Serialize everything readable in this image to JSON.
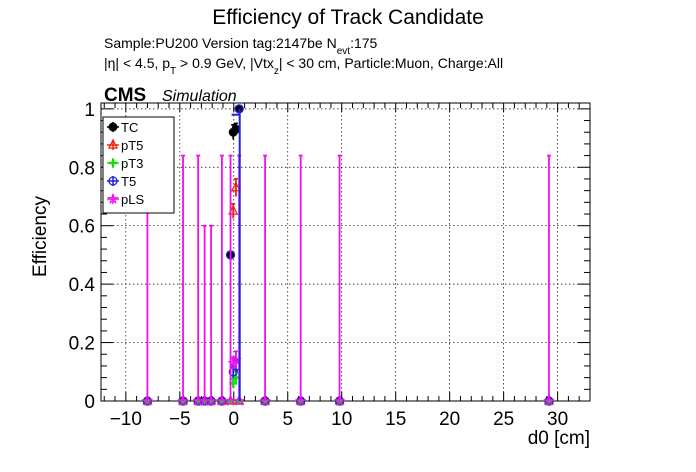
{
  "header": {
    "title": "Efficiency of Track Candidate",
    "sample_line_prefix": "Sample:PU200   Version tag:2147be  N",
    "sample_line_sub": "evt",
    "sample_line_suffix": ":175",
    "cuts_line": "|η| < 4.5, p",
    "cuts_sub_T": "T",
    "cuts_mid": " > 0.9 GeV, |Vtx",
    "cuts_sub_z": "z",
    "cuts_end": "| < 30 cm, Particle:Muon, Charge:All",
    "cms_label": "CMS",
    "simulation_label": "Simulation"
  },
  "chart_data": {
    "type": "scatter",
    "xlabel": "d0 [cm]",
    "ylabel": "Efficiency",
    "xlim": [
      -12.3,
      33.0
    ],
    "ylim": [
      0,
      1.02
    ],
    "grid": true,
    "legend_position": "top-left",
    "x_ticks": [
      -10,
      -5,
      0,
      5,
      10,
      15,
      20,
      25,
      30
    ],
    "y_ticks": [
      0,
      0.2,
      0.4,
      0.6,
      0.8,
      1
    ],
    "x_tick_labels": [
      "−10",
      "−5",
      "0",
      "5",
      "10",
      "15",
      "20",
      "25",
      "30"
    ],
    "y_tick_labels": [
      "0",
      "0.2",
      "0.4",
      "0.6",
      "0.8",
      "1"
    ],
    "series": [
      {
        "name": "TC",
        "color": "#000000",
        "marker": "circle-filled",
        "points": [
          {
            "x": -8.0,
            "y": 0,
            "err": 0
          },
          {
            "x": -4.7,
            "y": 0,
            "err": 0
          },
          {
            "x": -3.3,
            "y": 0,
            "err": 0
          },
          {
            "x": -2.7,
            "y": 0,
            "err": 0
          },
          {
            "x": -2.1,
            "y": 0,
            "err": 0
          },
          {
            "x": -1.1,
            "y": 0,
            "err": 0
          },
          {
            "x": -0.3,
            "y": 0.5,
            "err": 0
          },
          {
            "x": -0.05,
            "y": 0.92,
            "err": 0.025
          },
          {
            "x": 0.2,
            "y": 0.93,
            "err": 0.02
          },
          {
            "x": 0.5,
            "y": 1.0,
            "err": 0
          },
          {
            "x": 2.9,
            "y": 0,
            "err": 0
          },
          {
            "x": 6.2,
            "y": 0,
            "err": 0
          },
          {
            "x": 9.8,
            "y": 0,
            "err": 0
          },
          {
            "x": 29.2,
            "y": 0,
            "err": 0
          }
        ]
      },
      {
        "name": "pT5",
        "color": "#e8250c",
        "marker": "triangle-open",
        "points": [
          {
            "x": -8.0,
            "y": 0,
            "err": 0
          },
          {
            "x": -4.7,
            "y": 0,
            "err": 0
          },
          {
            "x": -3.3,
            "y": 0,
            "err": 0
          },
          {
            "x": -2.7,
            "y": 0,
            "err": 0
          },
          {
            "x": -2.1,
            "y": 0,
            "err": 0
          },
          {
            "x": -1.1,
            "y": 0,
            "err": 0
          },
          {
            "x": -0.3,
            "y": 0,
            "err": 0
          },
          {
            "x": -0.05,
            "y": 0.65,
            "err": 0.025
          },
          {
            "x": 0.2,
            "y": 0.73,
            "err": 0.03
          },
          {
            "x": 0.5,
            "y": 0,
            "err": 0
          },
          {
            "x": 2.9,
            "y": 0,
            "err": 0
          },
          {
            "x": 6.2,
            "y": 0,
            "err": 0
          },
          {
            "x": 9.8,
            "y": 0,
            "err": 0
          },
          {
            "x": 29.2,
            "y": 0,
            "err": 0
          }
        ]
      },
      {
        "name": "pT3",
        "color": "#11dd11",
        "marker": "cross",
        "points": [
          {
            "x": -8.0,
            "y": 0,
            "err": 0
          },
          {
            "x": -4.7,
            "y": 0,
            "err": 0
          },
          {
            "x": -3.3,
            "y": 0,
            "err": 0
          },
          {
            "x": -2.7,
            "y": 0,
            "err": 0
          },
          {
            "x": -2.1,
            "y": 0,
            "err": 0
          },
          {
            "x": -1.1,
            "y": 0,
            "err": 0
          },
          {
            "x": -0.3,
            "y": 0,
            "err": 0
          },
          {
            "x": -0.05,
            "y": 0.06,
            "err": 0.015
          },
          {
            "x": 0.2,
            "y": 0.08,
            "err": 0.02
          },
          {
            "x": 0.5,
            "y": 0,
            "err": 0
          },
          {
            "x": 2.9,
            "y": 0,
            "err": 0
          },
          {
            "x": 6.2,
            "y": 0,
            "err": 0
          },
          {
            "x": 9.8,
            "y": 0,
            "err": 0
          },
          {
            "x": 29.2,
            "y": 0,
            "err": 0
          }
        ]
      },
      {
        "name": "T5",
        "color": "#2222dd",
        "marker": "circle-open",
        "points": [
          {
            "x": -8.0,
            "y": 0,
            "err": 0
          },
          {
            "x": -4.7,
            "y": 0,
            "err": 0
          },
          {
            "x": -3.3,
            "y": 0,
            "err": 0
          },
          {
            "x": -2.7,
            "y": 0,
            "err": 0
          },
          {
            "x": -2.1,
            "y": 0,
            "err": 0
          },
          {
            "x": -1.1,
            "y": 0,
            "err": 0
          },
          {
            "x": -0.3,
            "y": 0.5,
            "err": 0
          },
          {
            "x": -0.05,
            "y": 0.1,
            "err": 0.02
          },
          {
            "x": 0.2,
            "y": 0.12,
            "err": 0.02
          },
          {
            "x": 0.5,
            "y": 1.0,
            "err": 0
          },
          {
            "x": 2.9,
            "y": 0,
            "err": 0
          },
          {
            "x": 6.2,
            "y": 0,
            "err": 0
          },
          {
            "x": 9.8,
            "y": 0,
            "err": 0
          },
          {
            "x": 29.2,
            "y": 0,
            "err": 0
          }
        ]
      },
      {
        "name": "pLS",
        "color": "#ee11ee",
        "marker": "star-open",
        "points": [
          {
            "x": -8.0,
            "y": 0,
            "err": 0,
            "err_up": 0.84
          },
          {
            "x": -4.7,
            "y": 0,
            "err": 0,
            "err_up": 0.84
          },
          {
            "x": -3.3,
            "y": 0,
            "err": 0,
            "err_up": 0.84
          },
          {
            "x": -2.7,
            "y": 0,
            "err": 0,
            "err_up": 0.6
          },
          {
            "x": -2.1,
            "y": 0,
            "err": 0,
            "err_up": 0.6
          },
          {
            "x": -1.1,
            "y": 0,
            "err": 0,
            "err_up": 0.84
          },
          {
            "x": -0.3,
            "y": 0,
            "err": 0,
            "err_up": 0.84
          },
          {
            "x": -0.05,
            "y": 0.13,
            "err": 0.02
          },
          {
            "x": 0.2,
            "y": 0.14,
            "err": 0.03
          },
          {
            "x": 0.5,
            "y": 0,
            "err": 0,
            "err_up": 0.84
          },
          {
            "x": 2.9,
            "y": 0,
            "err": 0,
            "err_up": 0.84
          },
          {
            "x": 6.2,
            "y": 0,
            "err": 0,
            "err_up": 0.84
          },
          {
            "x": 9.8,
            "y": 0,
            "err": 0,
            "err_up": 0.84
          },
          {
            "x": 29.2,
            "y": 0,
            "err": 0,
            "err_up": 0.84
          }
        ]
      }
    ]
  }
}
